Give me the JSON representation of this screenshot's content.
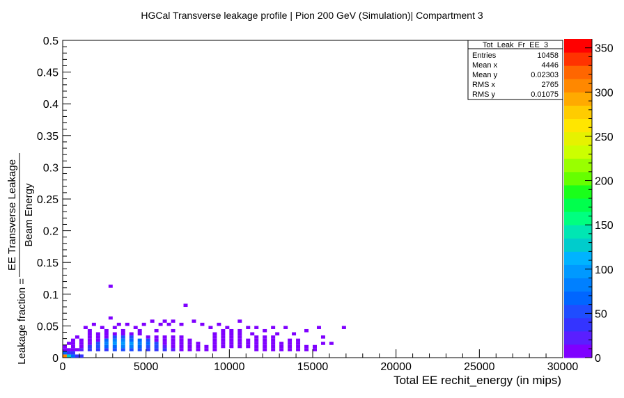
{
  "chart_data": {
    "type": "heatmap",
    "title": "HGCal Transverse leakage profile | Pion 200 GeV (Simulation)| Compartment 3",
    "xlabel": "Total EE rechit_energy (in mips)",
    "ylabel_prefix": "Leakage fraction =",
    "ylabel_numerator": "EE Transverse Leakage",
    "ylabel_denominator": "Beam Energy",
    "xlim": [
      0,
      30000
    ],
    "ylim": [
      0,
      0.5
    ],
    "zlim": [
      0,
      360
    ],
    "x_ticks": [
      0,
      5000,
      10000,
      15000,
      20000,
      25000,
      30000
    ],
    "x_tick_labels": [
      "0",
      "5000",
      "10000",
      "15000",
      "20000",
      "25000",
      "30000"
    ],
    "y_ticks": [
      0,
      0.05,
      0.1,
      0.15,
      0.2,
      0.25,
      0.3,
      0.35,
      0.4,
      0.45,
      0.5
    ],
    "y_tick_labels": [
      "0",
      "0.05",
      "0.1",
      "0.15",
      "0.2",
      "0.25",
      "0.3",
      "0.35",
      "0.4",
      "0.45",
      "0.5"
    ],
    "z_ticks": [
      0,
      50,
      100,
      150,
      200,
      250,
      300,
      350
    ],
    "z_tick_labels": [
      "0",
      "50",
      "100",
      "150",
      "200",
      "250",
      "300",
      "350"
    ],
    "palette": [
      "#7f00ff",
      "#5a1fff",
      "#3434ff",
      "#1f4dff",
      "#0066ff",
      "#0080ff",
      "#0099ff",
      "#00b3ff",
      "#00cccc",
      "#00e6b3",
      "#00ff80",
      "#00ff4d",
      "#1aff1a",
      "#66ff00",
      "#99ff00",
      "#ccff00",
      "#e6f200",
      "#ffe600",
      "#ffcc00",
      "#ffaa00",
      "#ff8800",
      "#ff6600",
      "#ff3300",
      "#ff0000"
    ],
    "bins": {
      "x_bin_width": 250,
      "y_bin_width": 0.005,
      "cells": [
        [
          0,
          0,
          300
        ],
        [
          250,
          0,
          120
        ],
        [
          500,
          0,
          60
        ],
        [
          750,
          0,
          40
        ],
        [
          1000,
          0,
          30
        ],
        [
          0,
          0.005,
          60
        ],
        [
          250,
          0.005,
          40
        ],
        [
          500,
          0.005,
          30
        ],
        [
          1000,
          0.01,
          25
        ],
        [
          1500,
          0.01,
          30
        ],
        [
          2000,
          0.01,
          35
        ],
        [
          2500,
          0.01,
          40
        ],
        [
          3000,
          0.01,
          45
        ],
        [
          3500,
          0.01,
          50
        ],
        [
          4000,
          0.01,
          50
        ],
        [
          4500,
          0.01,
          45
        ],
        [
          5000,
          0.01,
          40
        ],
        [
          5500,
          0.01,
          35
        ],
        [
          6000,
          0.01,
          30
        ],
        [
          1500,
          0.015,
          40
        ],
        [
          2000,
          0.015,
          50
        ],
        [
          2500,
          0.015,
          60
        ],
        [
          3000,
          0.015,
          70
        ],
        [
          3500,
          0.015,
          80
        ],
        [
          4000,
          0.015,
          75
        ],
        [
          4500,
          0.015,
          65
        ],
        [
          5000,
          0.015,
          55
        ],
        [
          5500,
          0.015,
          45
        ],
        [
          2000,
          0.02,
          55
        ],
        [
          2500,
          0.02,
          75
        ],
        [
          3000,
          0.02,
          90
        ],
        [
          3500,
          0.02,
          95
        ],
        [
          4000,
          0.02,
          90
        ],
        [
          4500,
          0.02,
          80
        ],
        [
          5000,
          0.02,
          65
        ],
        [
          5500,
          0.02,
          50
        ],
        [
          2500,
          0.025,
          70
        ],
        [
          3000,
          0.025,
          85
        ],
        [
          3500,
          0.025,
          80
        ],
        [
          4000,
          0.025,
          70
        ],
        [
          4500,
          0.025,
          60
        ],
        [
          5000,
          0.025,
          50
        ],
        [
          3000,
          0.03,
          55
        ],
        [
          3500,
          0.03,
          50
        ],
        [
          4000,
          0.03,
          45
        ]
      ],
      "spread_cells": [
        [
          0,
          0.01,
          12
        ],
        [
          250,
          0.01,
          10
        ],
        [
          500,
          0.01,
          10
        ],
        [
          750,
          0.01,
          12
        ],
        [
          0,
          0.015,
          8
        ],
        [
          500,
          0.015,
          8
        ],
        [
          1000,
          0.015,
          12
        ],
        [
          500,
          0.02,
          6
        ],
        [
          1000,
          0.02,
          10
        ],
        [
          1500,
          0.02,
          14
        ],
        [
          1000,
          0.025,
          6
        ],
        [
          1500,
          0.025,
          10
        ],
        [
          2000,
          0.025,
          14
        ],
        [
          1500,
          0.03,
          8
        ],
        [
          2000,
          0.03,
          12
        ],
        [
          2500,
          0.03,
          14
        ],
        [
          1500,
          0.035,
          6
        ],
        [
          2000,
          0.035,
          8
        ],
        [
          2500,
          0.035,
          10
        ],
        [
          3000,
          0.035,
          12
        ],
        [
          3500,
          0.035,
          12
        ],
        [
          4000,
          0.035,
          10
        ],
        [
          4500,
          0.035,
          8
        ],
        [
          2500,
          0.04,
          6
        ],
        [
          3500,
          0.04,
          6
        ],
        [
          4500,
          0.04,
          6
        ],
        [
          5500,
          0.04,
          5
        ],
        [
          6500,
          0.04,
          5
        ],
        [
          6500,
          0.01,
          18
        ],
        [
          7000,
          0.01,
          14
        ],
        [
          7500,
          0.01,
          10
        ],
        [
          8000,
          0.01,
          8
        ],
        [
          8500,
          0.01,
          6
        ],
        [
          9000,
          0.01,
          5
        ],
        [
          6000,
          0.015,
          18
        ],
        [
          6500,
          0.015,
          14
        ],
        [
          7000,
          0.015,
          12
        ],
        [
          7500,
          0.015,
          10
        ],
        [
          8000,
          0.015,
          8
        ],
        [
          8500,
          0.015,
          6
        ],
        [
          6000,
          0.02,
          14
        ],
        [
          6500,
          0.02,
          12
        ],
        [
          7000,
          0.02,
          10
        ],
        [
          7500,
          0.02,
          8
        ],
        [
          8000,
          0.02,
          6
        ],
        [
          5500,
          0.025,
          14
        ],
        [
          6000,
          0.025,
          12
        ],
        [
          6500,
          0.025,
          10
        ],
        [
          7000,
          0.025,
          8
        ],
        [
          7500,
          0.025,
          6
        ],
        [
          5000,
          0.03,
          12
        ],
        [
          5500,
          0.03,
          10
        ],
        [
          6000,
          0.03,
          8
        ],
        [
          6500,
          0.03,
          6
        ],
        [
          7000,
          0.03,
          5
        ],
        [
          9000,
          0.015,
          5
        ],
        [
          9500,
          0.015,
          5
        ],
        [
          10000,
          0.015,
          4
        ],
        [
          10500,
          0.015,
          4
        ],
        [
          11000,
          0.015,
          3
        ],
        [
          9000,
          0.02,
          5
        ],
        [
          9500,
          0.02,
          4
        ],
        [
          10000,
          0.02,
          4
        ],
        [
          10500,
          0.02,
          3
        ],
        [
          11000,
          0.02,
          3
        ],
        [
          9000,
          0.025,
          4
        ],
        [
          9500,
          0.025,
          4
        ],
        [
          10000,
          0.025,
          3
        ],
        [
          10500,
          0.025,
          3
        ],
        [
          11000,
          0.025,
          3
        ],
        [
          9000,
          0.03,
          3
        ],
        [
          9500,
          0.03,
          3
        ],
        [
          10000,
          0.03,
          3
        ],
        [
          10500,
          0.03,
          3
        ],
        [
          9000,
          0.035,
          3
        ],
        [
          9500,
          0.035,
          3
        ],
        [
          10000,
          0.035,
          3
        ],
        [
          10500,
          0.035,
          2
        ],
        [
          9500,
          0.04,
          2
        ],
        [
          10000,
          0.04,
          2
        ],
        [
          10500,
          0.04,
          2
        ],
        [
          11500,
          0.01,
          2
        ],
        [
          12000,
          0.01,
          2
        ],
        [
          12500,
          0.01,
          2
        ],
        [
          13000,
          0.01,
          2
        ],
        [
          13500,
          0.01,
          2
        ],
        [
          14000,
          0.01,
          1
        ],
        [
          14500,
          0.01,
          1
        ],
        [
          15000,
          0.01,
          1
        ],
        [
          11500,
          0.015,
          2
        ],
        [
          12000,
          0.015,
          2
        ],
        [
          12500,
          0.015,
          2
        ],
        [
          13000,
          0.015,
          1
        ],
        [
          13500,
          0.015,
          1
        ],
        [
          14000,
          0.015,
          1
        ],
        [
          14500,
          0.015,
          1
        ],
        [
          15000,
          0.015,
          1
        ],
        [
          11500,
          0.02,
          2
        ],
        [
          12000,
          0.02,
          2
        ],
        [
          12500,
          0.02,
          1
        ],
        [
          13000,
          0.02,
          1
        ],
        [
          13500,
          0.02,
          1
        ],
        [
          14000,
          0.02,
          1
        ],
        [
          15500,
          0.02,
          1
        ],
        [
          11500,
          0.025,
          2
        ],
        [
          12000,
          0.025,
          1
        ],
        [
          12500,
          0.025,
          1
        ],
        [
          13500,
          0.025,
          1
        ],
        [
          14000,
          0.025,
          1
        ],
        [
          11500,
          0.03,
          1
        ],
        [
          12000,
          0.03,
          1
        ],
        [
          12500,
          0.03,
          1
        ]
      ],
      "outliers": [
        [
          1250,
          0.045,
          1
        ],
        [
          1500,
          0.04,
          1
        ],
        [
          1750,
          0.05,
          1
        ],
        [
          2250,
          0.045,
          1
        ],
        [
          2750,
          0.06,
          1
        ],
        [
          3000,
          0.045,
          1
        ],
        [
          3250,
          0.05,
          1
        ],
        [
          3750,
          0.05,
          1
        ],
        [
          4250,
          0.045,
          1
        ],
        [
          4750,
          0.05,
          1
        ],
        [
          5250,
          0.055,
          1
        ],
        [
          5750,
          0.05,
          1
        ],
        [
          6000,
          0.055,
          1
        ],
        [
          6250,
          0.05,
          1
        ],
        [
          6500,
          0.055,
          1
        ],
        [
          7000,
          0.05,
          1
        ],
        [
          7250,
          0.08,
          1
        ],
        [
          7750,
          0.055,
          1
        ],
        [
          8250,
          0.05,
          1
        ],
        [
          8750,
          0.045,
          1
        ],
        [
          9250,
          0.05,
          1
        ],
        [
          9750,
          0.045,
          1
        ],
        [
          10500,
          0.055,
          1
        ],
        [
          11000,
          0.045,
          1
        ],
        [
          11500,
          0.045,
          1
        ],
        [
          12000,
          0.04,
          1
        ],
        [
          12500,
          0.045,
          1
        ],
        [
          13250,
          0.045,
          1
        ],
        [
          13750,
          0.035,
          1
        ],
        [
          14500,
          0.04,
          1
        ],
        [
          15250,
          0.045,
          1
        ],
        [
          15500,
          0.03,
          1
        ],
        [
          16000,
          0.02,
          1
        ],
        [
          16750,
          0.045,
          1
        ],
        [
          2750,
          0.11,
          1
        ],
        [
          11250,
          0.035,
          1
        ],
        [
          12750,
          0.035,
          1
        ],
        [
          500,
          0.025,
          1
        ],
        [
          250,
          0.02,
          1
        ],
        [
          750,
          0.03,
          1
        ]
      ]
    }
  },
  "stats_box": {
    "name": "Tot_Leak_Fr_EE_3",
    "rows": [
      {
        "label": "Entries",
        "value": "10458"
      },
      {
        "label": "Mean x",
        "value": "4446"
      },
      {
        "label": "Mean y",
        "value": "0.02303"
      },
      {
        "label": "RMS x",
        "value": "2765"
      },
      {
        "label": "RMS y",
        "value": "0.01075"
      }
    ]
  }
}
